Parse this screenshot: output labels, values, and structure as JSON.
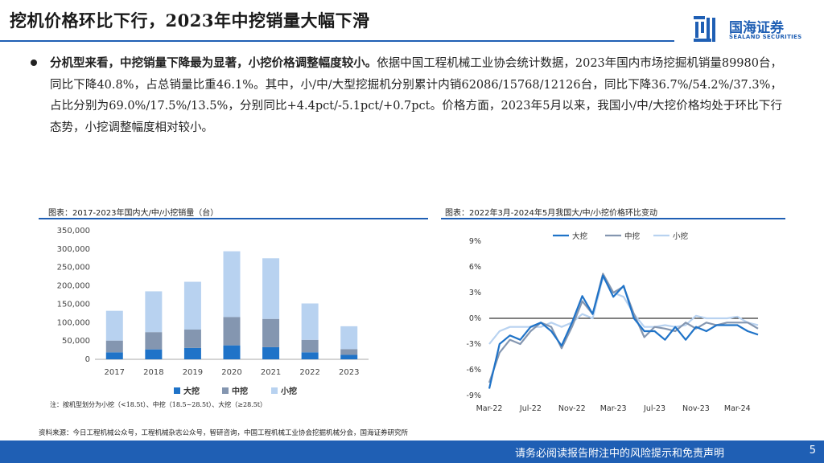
{
  "header": {
    "title": "挖机价格环比下行，2023年中挖销量大幅下滑",
    "logo_cn": "国海证券",
    "logo_en": "SEALAND SECURITIES"
  },
  "body": {
    "bold_lead": "分机型来看，中挖销量下降最为显著，小挖价格调整幅度较小。",
    "paragraph": "依据中国工程机械工业协会统计数据，2023年国内市场挖掘机销量89980台，同比下降40.8%，占总销量比重46.1%。其中，小/中/大型挖掘机分别累计内销62086/15768/12126台，同比下降36.7%/54.2%/37.3%，占比分别为69.0%/17.5%/13.5%，分别同比+4.4pct/-5.1pct/+0.7pct。价格方面，2023年5月以来，我国小/中/大挖价格均处于环比下行态势，小挖调整幅度相对较小。"
  },
  "left_chart": {
    "caption": "图表：2017-2023年国内大/中/小挖销量（台）",
    "note": "注：按机型划分为小挖（<18.5t）、中挖（18.5~28.5t）、大挖（≥28.5t）"
  },
  "right_chart": {
    "caption": "图表：2022年3月-2024年5月我国大/中/小挖价格环比变动"
  },
  "footer": {
    "source": "资料来源：今日工程机械公众号，工程机械杂志公众号，智研咨询，中国工程机械工业协会挖掘机械分会，国海证券研究所",
    "disclaimer": "请务必阅读报告附注中的风险提示和免责声明",
    "page": "5"
  },
  "colors": {
    "brand": "#1f5fb4",
    "big": "#1f73c8",
    "mid": "#8496b0",
    "small": "#b8d2f0"
  },
  "chart_data": [
    {
      "type": "bar",
      "stacked": true,
      "categories": [
        "2017",
        "2018",
        "2019",
        "2020",
        "2021",
        "2022",
        "2023"
      ],
      "series": [
        {
          "name": "大挖",
          "values": [
            19000,
            27000,
            31000,
            38000,
            33000,
            19000,
            12126
          ]
        },
        {
          "name": "中挖",
          "values": [
            32000,
            47000,
            50000,
            77000,
            77000,
            34000,
            15768
          ]
        },
        {
          "name": "小挖",
          "values": [
            81000,
            111000,
            130000,
            179000,
            165000,
            99000,
            62086
          ]
        }
      ],
      "yticks": [
        "0",
        "50,000",
        "100,000",
        "150,000",
        "200,000",
        "250,000",
        "300,000",
        "350,000"
      ],
      "ylim": [
        0,
        350000
      ],
      "legend": "bottom"
    },
    {
      "type": "line",
      "x": [
        "2022-03",
        "2022-04",
        "2022-05",
        "2022-06",
        "2022-07",
        "2022-08",
        "2022-09",
        "2022-10",
        "2022-11",
        "2022-12",
        "2023-01",
        "2023-02",
        "2023-03",
        "2023-04",
        "2023-05",
        "2023-06",
        "2023-07",
        "2023-08",
        "2023-09",
        "2023-10",
        "2023-11",
        "2023-12",
        "2024-01",
        "2024-02",
        "2024-03",
        "2024-04",
        "2024-05"
      ],
      "xticks": [
        "Mar-22",
        "Jul-22",
        "Nov-22",
        "Mar-23",
        "Jul-23",
        "Nov-23",
        "Mar-24"
      ],
      "yticks": [
        "9%",
        "6%",
        "3%",
        "0%",
        "-3%",
        "-6%",
        "-9%"
      ],
      "ylim": [
        -9,
        9
      ],
      "series": [
        {
          "name": "大挖",
          "values": [
            -8.2,
            -3.0,
            -2.0,
            -2.5,
            -1.0,
            -0.5,
            -1.5,
            -3.2,
            -0.5,
            2.6,
            0.5,
            5.0,
            2.5,
            3.8,
            0.0,
            -1.5,
            -1.5,
            -2.5,
            -1.0,
            -2.5,
            -1.0,
            -1.5,
            -0.8,
            -0.8,
            -0.8,
            -1.5,
            -1.9
          ]
        },
        {
          "name": "中挖",
          "values": [
            -7.5,
            -4.0,
            -2.5,
            -3.0,
            -1.5,
            -0.5,
            -1.0,
            -3.5,
            -1.0,
            2.0,
            0.5,
            5.2,
            3.0,
            3.7,
            0.5,
            -2.2,
            -1.0,
            -1.2,
            -1.5,
            -0.5,
            -1.2,
            -0.5,
            -0.8,
            -0.5,
            -0.5,
            -0.5,
            -1.2
          ]
        },
        {
          "name": "小挖",
          "values": [
            -3.0,
            -1.5,
            -1.0,
            -1.0,
            -1.0,
            -1.0,
            -0.5,
            -1.0,
            -0.5,
            0.5,
            0.0,
            4.8,
            3.0,
            2.5,
            0.5,
            -1.0,
            -1.0,
            -0.8,
            -1.0,
            -0.8,
            0.3,
            0.0,
            0.0,
            0.0,
            0.2,
            -0.5,
            -0.8
          ]
        }
      ],
      "legend": "top"
    }
  ]
}
